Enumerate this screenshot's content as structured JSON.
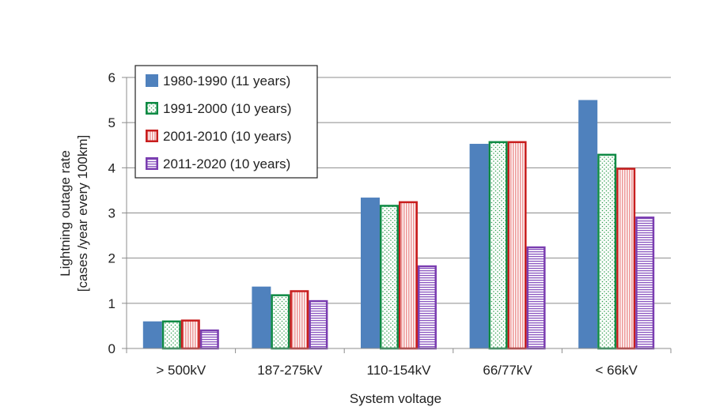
{
  "chart_data": {
    "type": "bar",
    "title": "",
    "xlabel": "System voltage",
    "ylabel_lines": [
      "Lightning outage rate",
      "[cases /year every 100km]"
    ],
    "ylim": [
      0,
      6
    ],
    "yticks": [
      0,
      1,
      2,
      3,
      4,
      5,
      6
    ],
    "grid": true,
    "legend_position": "top-left",
    "categories": [
      "> 500kV",
      "187-275kV",
      "110-154kV",
      "66/77kV",
      "< 66kV"
    ],
    "series": [
      {
        "name": "1980-1990 (11 years)",
        "values": [
          0.6,
          1.37,
          3.34,
          4.53,
          5.5
        ],
        "fill": "#4f81bd",
        "stroke": "#4f81bd",
        "pattern": "solid"
      },
      {
        "name": "1991-2000 (10 years)",
        "values": [
          0.62,
          1.2,
          3.18,
          4.59,
          4.31
        ],
        "fill": "#e8f5ea",
        "stroke": "#0e8a44",
        "pattern": "dots"
      },
      {
        "name": "2001-2010 (10 years)",
        "values": [
          0.64,
          1.29,
          3.26,
          4.59,
          4.0
        ],
        "fill": "#f7c6c6",
        "stroke": "#c81e1e",
        "pattern": "vlines"
      },
      {
        "name": "2011-2020 (10 years)",
        "values": [
          0.42,
          1.07,
          1.84,
          2.26,
          2.92
        ],
        "fill": "#ffffff",
        "stroke": "#7a3db0",
        "pattern": "hlines"
      }
    ]
  }
}
